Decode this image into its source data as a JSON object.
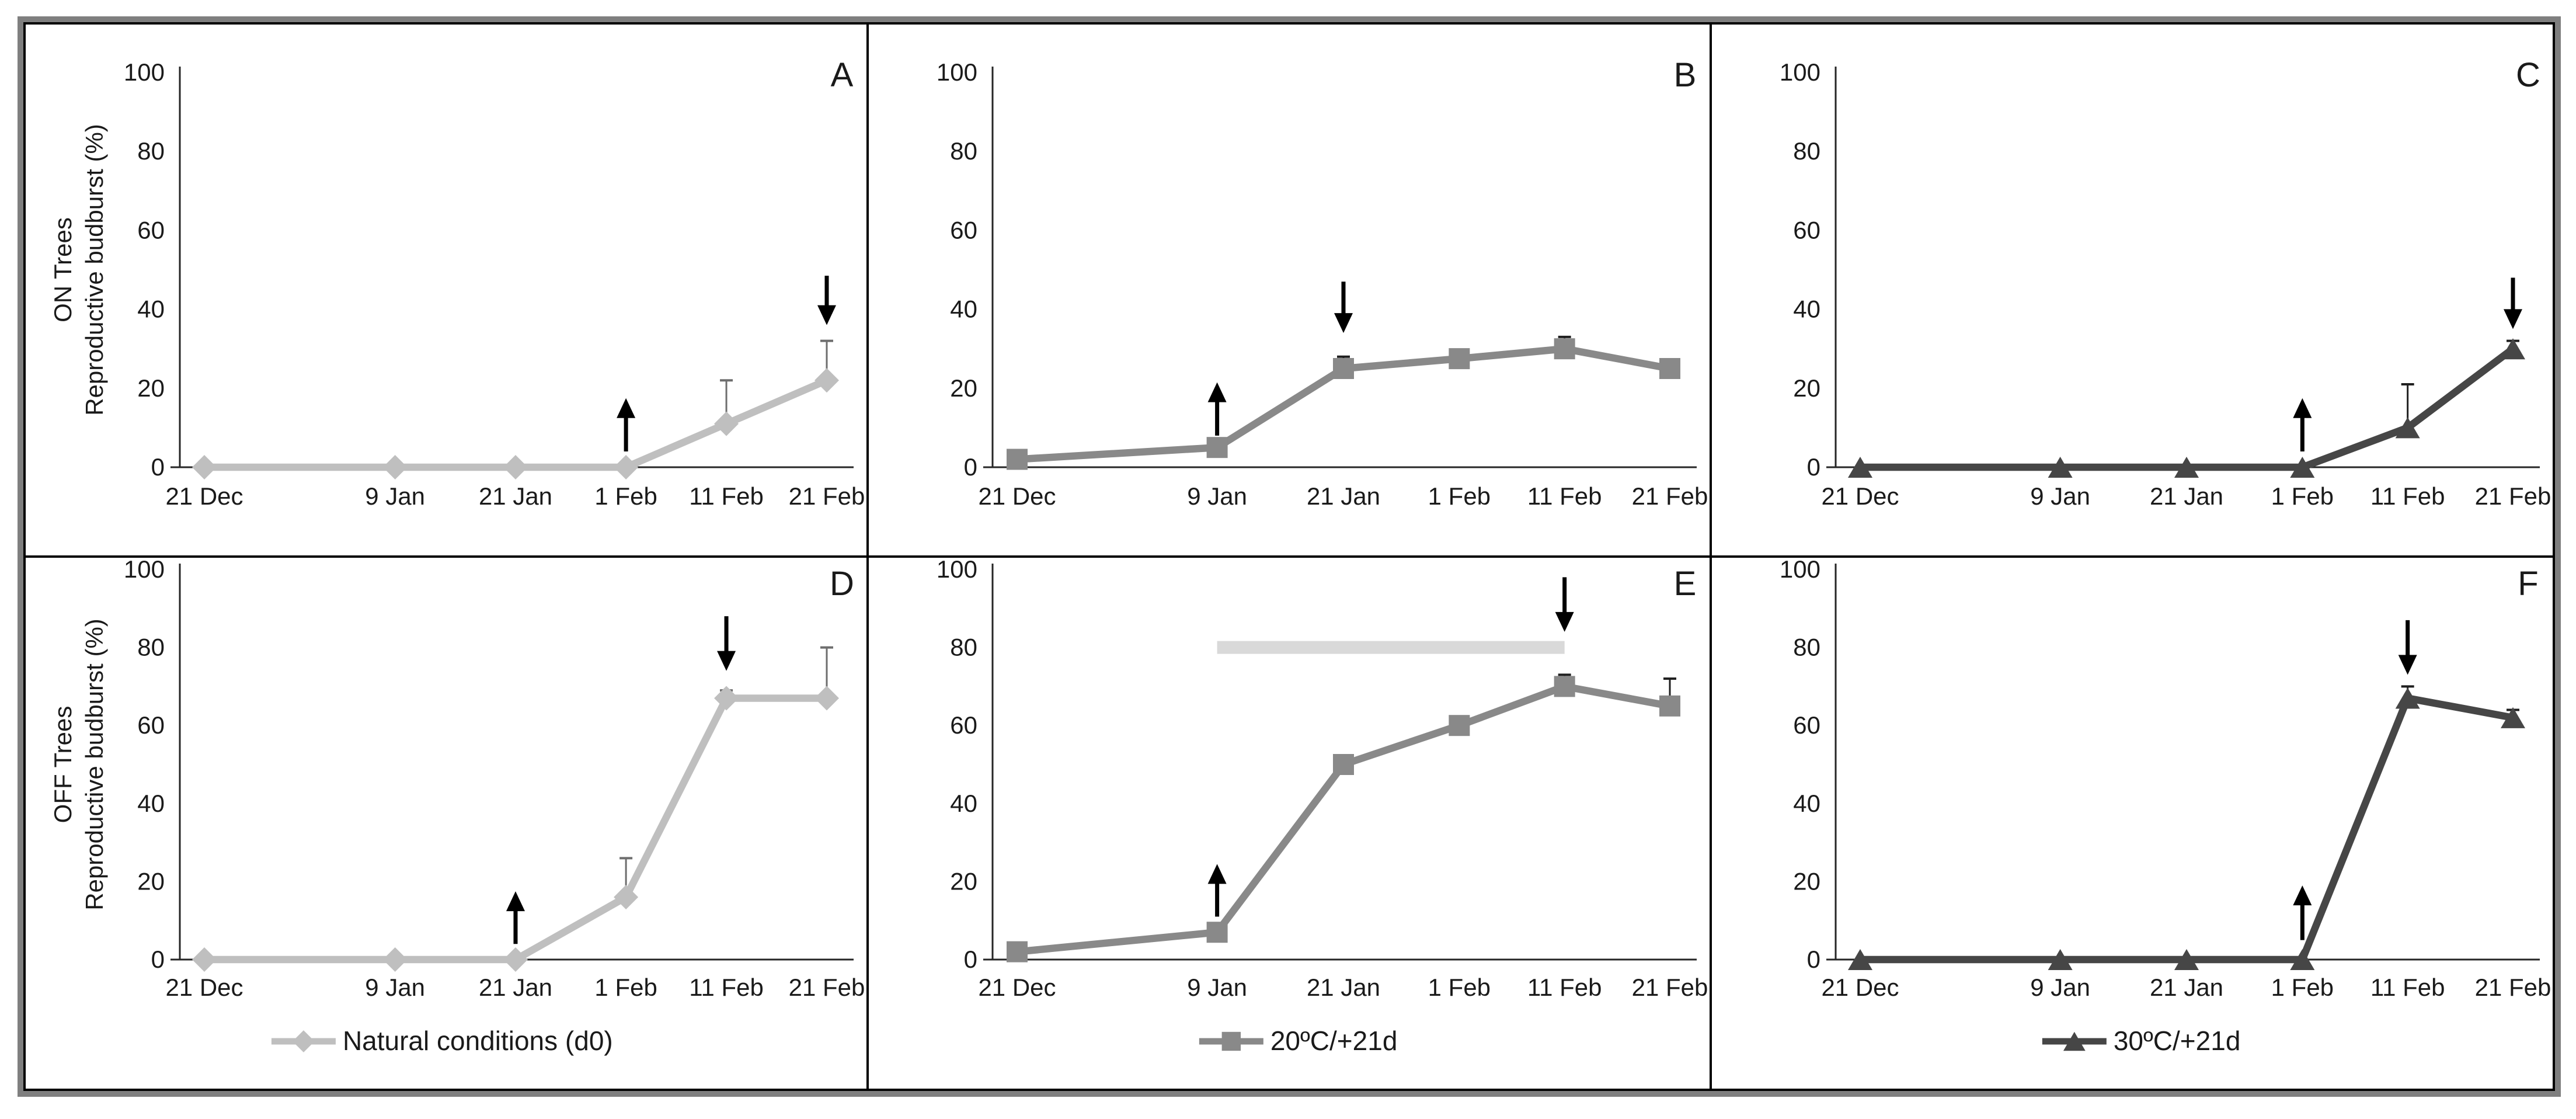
{
  "figure": {
    "frame_color": "#7f7f7f",
    "grid_line_color": "#000000",
    "background": "#ffffff",
    "text_color": "#1a1a1a",
    "axis_color": "#262626",
    "row_axis_titles": [
      {
        "line1": "ON Trees",
        "line2": "Reproductive budburst (%)"
      },
      {
        "line1": "OFF Trees",
        "line2": "Reproductive budburst (%)"
      }
    ],
    "legend_labels": [
      "Natural conditions (d0)",
      "20ºC/+21d",
      "30ºC/+21d"
    ],
    "series_colors": {
      "natural": "#bfbfbf",
      "t20": "#898989",
      "t30": "#464646"
    },
    "highlight_bar_color": "#d9d9d9"
  },
  "chart_data": [
    {
      "type": "line",
      "panel": "A",
      "row": 0,
      "col": 0,
      "categories": [
        "21 Dec",
        "9 Jan",
        "21 Jan",
        "1 Feb",
        "11 Feb",
        "21 Feb"
      ],
      "x_days": [
        0,
        19,
        31,
        42,
        52,
        62
      ],
      "ylim": [
        0,
        100
      ],
      "y_ticks": [
        0,
        20,
        40,
        60,
        80,
        100
      ],
      "y_axis_title_lines": [
        "ON Trees",
        "Reproductive budburst (%)"
      ],
      "series": [
        {
          "name": "Natural conditions (d0)",
          "marker": "diamond",
          "color": "#bfbfbf",
          "values": [
            0,
            0,
            0,
            0,
            11,
            22
          ],
          "errors_up": [
            0,
            0,
            0,
            0,
            11,
            10
          ]
        }
      ],
      "error_color": "#6e6e6e",
      "annotations": [
        {
          "kind": "up-arrow",
          "day": 42,
          "y_from": 4,
          "y_to": 17.5
        },
        {
          "kind": "down-arrow",
          "day": 62,
          "y_from": 48.5,
          "y_to": 36
        }
      ],
      "highlight_bar": null,
      "legend": null
    },
    {
      "type": "line",
      "panel": "B",
      "row": 0,
      "col": 1,
      "categories": [
        "21 Dec",
        "9 Jan",
        "21 Jan",
        "1 Feb",
        "11 Feb",
        "21 Feb"
      ],
      "x_days": [
        0,
        19,
        31,
        42,
        52,
        62
      ],
      "ylim": [
        0,
        100
      ],
      "y_ticks": [
        0,
        20,
        40,
        60,
        80,
        100
      ],
      "y_axis_title_lines": null,
      "series": [
        {
          "name": "20ºC/+21d",
          "marker": "square",
          "color": "#898989",
          "values": [
            2,
            5,
            25,
            27.5,
            30,
            25
          ],
          "errors_up": [
            0,
            0,
            3,
            0,
            3,
            2
          ]
        }
      ],
      "error_color": "#1f1f1f",
      "annotations": [
        {
          "kind": "up-arrow",
          "day": 19,
          "y_from": 8,
          "y_to": 21.5
        },
        {
          "kind": "down-arrow",
          "day": 31,
          "y_from": 47,
          "y_to": 34
        }
      ],
      "highlight_bar": null,
      "legend": null
    },
    {
      "type": "line",
      "panel": "C",
      "row": 0,
      "col": 2,
      "categories": [
        "21 Dec",
        "9 Jan",
        "21 Jan",
        "1 Feb",
        "11 Feb",
        "21 Feb"
      ],
      "x_days": [
        0,
        19,
        31,
        42,
        52,
        62
      ],
      "ylim": [
        0,
        100
      ],
      "y_ticks": [
        0,
        20,
        40,
        60,
        80,
        100
      ],
      "y_axis_title_lines": null,
      "series": [
        {
          "name": "30ºC/+21d",
          "marker": "triangle",
          "color": "#464646",
          "values": [
            0,
            0,
            0,
            0,
            10,
            30
          ],
          "errors_up": [
            0,
            0,
            0,
            0,
            11,
            2
          ]
        }
      ],
      "error_color": "#1f1f1f",
      "annotations": [
        {
          "kind": "up-arrow",
          "day": 42,
          "y_from": 4,
          "y_to": 17.5
        },
        {
          "kind": "down-arrow",
          "day": 62,
          "y_from": 48,
          "y_to": 35
        }
      ],
      "highlight_bar": null,
      "legend": null
    },
    {
      "type": "line",
      "panel": "D",
      "row": 1,
      "col": 0,
      "categories": [
        "21 Dec",
        "9 Jan",
        "21 Jan",
        "1 Feb",
        "11 Feb",
        "21 Feb"
      ],
      "x_days": [
        0,
        19,
        31,
        42,
        52,
        62
      ],
      "ylim": [
        0,
        100
      ],
      "y_ticks": [
        0,
        20,
        40,
        60,
        80,
        100
      ],
      "y_axis_title_lines": [
        "OFF Trees",
        "Reproductive budburst (%)"
      ],
      "series": [
        {
          "name": "Natural conditions (d0)",
          "marker": "diamond",
          "color": "#bfbfbf",
          "values": [
            0,
            0,
            0,
            16,
            67,
            67
          ],
          "errors_up": [
            0,
            0,
            0,
            10,
            2,
            13
          ]
        }
      ],
      "error_color": "#6e6e6e",
      "annotations": [
        {
          "kind": "up-arrow",
          "day": 31,
          "y_from": 4,
          "y_to": 17.5
        },
        {
          "kind": "down-arrow",
          "day": 52,
          "y_from": 88,
          "y_to": 74
        }
      ],
      "highlight_bar": null,
      "legend": {
        "label": "Natural conditions (d0)",
        "marker": "diamond",
        "color": "#bfbfbf"
      }
    },
    {
      "type": "line",
      "panel": "E",
      "row": 1,
      "col": 1,
      "categories": [
        "21 Dec",
        "9 Jan",
        "21 Jan",
        "1 Feb",
        "11 Feb",
        "21 Feb"
      ],
      "x_days": [
        0,
        19,
        31,
        42,
        52,
        62
      ],
      "ylim": [
        0,
        100
      ],
      "y_ticks": [
        0,
        20,
        40,
        60,
        80,
        100
      ],
      "y_axis_title_lines": null,
      "series": [
        {
          "name": "20ºC/+21d",
          "marker": "square",
          "color": "#898989",
          "values": [
            2,
            7,
            50,
            60,
            70,
            65
          ],
          "errors_up": [
            0,
            0,
            0,
            0,
            3,
            7
          ]
        }
      ],
      "error_color": "#1f1f1f",
      "annotations": [
        {
          "kind": "up-arrow",
          "day": 19,
          "y_from": 11,
          "y_to": 24.5
        },
        {
          "kind": "down-arrow",
          "day": 52,
          "y_from": 98,
          "y_to": 84
        }
      ],
      "highlight_bar": {
        "day_from": 19,
        "day_to": 52,
        "y": 80,
        "color": "#d9d9d9"
      },
      "legend": {
        "label": "20ºC/+21d",
        "marker": "square",
        "color": "#898989"
      }
    },
    {
      "type": "line",
      "panel": "F",
      "row": 1,
      "col": 2,
      "categories": [
        "21 Dec",
        "9 Jan",
        "21 Jan",
        "1 Feb",
        "11 Feb",
        "21 Feb"
      ],
      "x_days": [
        0,
        19,
        31,
        42,
        52,
        62
      ],
      "ylim": [
        0,
        100
      ],
      "y_ticks": [
        0,
        20,
        40,
        60,
        80,
        100
      ],
      "y_axis_title_lines": null,
      "series": [
        {
          "name": "30ºC/+21d",
          "marker": "triangle",
          "color": "#464646",
          "values": [
            0,
            0,
            0,
            0,
            67,
            62
          ],
          "errors_up": [
            0,
            0,
            0,
            0,
            3,
            2
          ]
        }
      ],
      "error_color": "#1f1f1f",
      "annotations": [
        {
          "kind": "up-arrow",
          "day": 42,
          "y_from": 5,
          "y_to": 19
        },
        {
          "kind": "down-arrow",
          "day": 52,
          "y_from": 87,
          "y_to": 73
        }
      ],
      "highlight_bar": null,
      "legend": {
        "label": "30ºC/+21d",
        "marker": "triangle",
        "color": "#464646"
      }
    }
  ]
}
